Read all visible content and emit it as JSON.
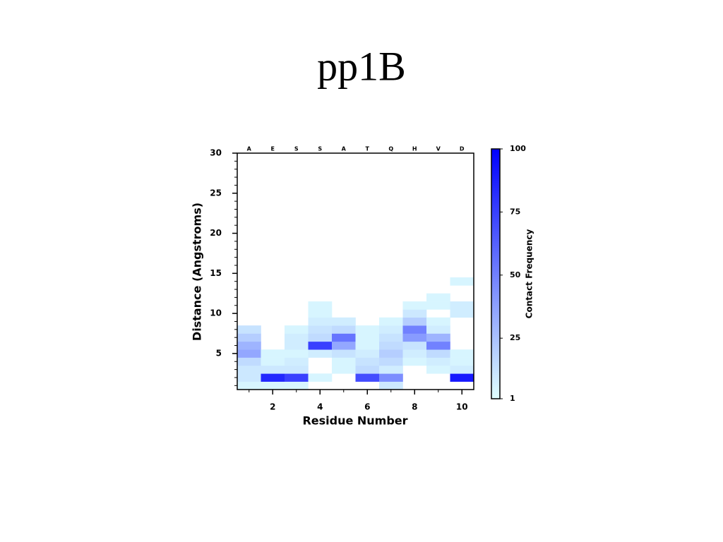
{
  "chart_data": {
    "type": "heatmap",
    "title": "pp1B",
    "x_label": "Residue Number",
    "y_label": "Distance (Angstroms)",
    "colorbar_label": "Contact Frequency",
    "sequence": [
      "A",
      "E",
      "S",
      "S",
      "A",
      "T",
      "Q",
      "H",
      "V",
      "D"
    ],
    "xlim": [
      0.5,
      10.5
    ],
    "xticks": [
      2,
      4,
      6,
      8,
      10
    ],
    "ylim": [
      0.5,
      30
    ],
    "yticks": [
      5,
      10,
      15,
      20,
      25,
      30
    ],
    "clim": [
      1,
      100
    ],
    "cticks": [
      1,
      25,
      50,
      75,
      100
    ],
    "colormap": [
      "#e0ffff",
      "#0000ff"
    ],
    "x": [
      1,
      1,
      1,
      1,
      1,
      1,
      1,
      1,
      2,
      2,
      2,
      2,
      2,
      3,
      3,
      3,
      3,
      3,
      3,
      3,
      3,
      4,
      4,
      4,
      4,
      4,
      4,
      4,
      4,
      5,
      5,
      5,
      5,
      5,
      5,
      5,
      6,
      6,
      6,
      6,
      6,
      6,
      6,
      7,
      7,
      7,
      7,
      7,
      7,
      7,
      7,
      7,
      8,
      8,
      8,
      8,
      8,
      8,
      8,
      8,
      9,
      9,
      9,
      9,
      9,
      9,
      9,
      9,
      9,
      10,
      10,
      10,
      10,
      10,
      10,
      10
    ],
    "y": [
      1,
      2,
      3,
      4,
      5,
      6,
      7,
      8,
      1,
      2,
      3,
      4,
      5,
      1,
      2,
      3,
      4,
      5,
      6,
      7,
      8,
      2,
      5,
      6,
      7,
      8,
      9,
      10,
      11,
      3,
      4,
      5,
      6,
      7,
      8,
      9,
      2,
      3,
      4,
      5,
      6,
      7,
      8,
      1,
      2,
      3,
      4,
      5,
      6,
      7,
      8,
      9,
      4,
      5,
      6,
      7,
      8,
      9,
      10,
      11,
      3,
      4,
      5,
      6,
      7,
      8,
      9,
      11,
      12,
      2,
      3,
      4,
      5,
      10,
      11,
      14
    ],
    "values": [
      5,
      10,
      10,
      15,
      35,
      30,
      20,
      12,
      5,
      85,
      10,
      5,
      5,
      5,
      75,
      10,
      8,
      5,
      8,
      8,
      5,
      5,
      8,
      75,
      15,
      12,
      8,
      5,
      5,
      5,
      5,
      12,
      35,
      55,
      15,
      8,
      70,
      15,
      12,
      8,
      5,
      5,
      5,
      10,
      45,
      8,
      15,
      20,
      15,
      12,
      8,
      5,
      5,
      8,
      12,
      40,
      50,
      20,
      10,
      5,
      5,
      8,
      15,
      50,
      30,
      8,
      5,
      5,
      5,
      90,
      8,
      5,
      5,
      8,
      8,
      5
    ]
  }
}
